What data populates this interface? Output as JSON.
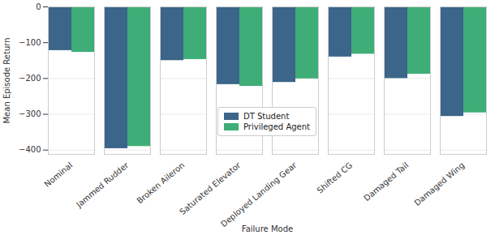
{
  "chart_data": {
    "type": "bar",
    "x_label": "Failure Mode",
    "y_label": "Mean Episode Return",
    "categories": [
      "Nominal",
      "Jammed Rudder",
      "Broken Aileron",
      "Saturated Elevator",
      "Deployed Landing Gear",
      "Shifted CG",
      "Damaged Tail",
      "Damaged Wing"
    ],
    "series": [
      {
        "name": "DT Student",
        "color": "#3b6589",
        "values": [
          -122,
          -396,
          -150,
          -217,
          -211,
          -140,
          -200,
          -306
        ]
      },
      {
        "name": "Privileged Agent",
        "color": "#3fad77",
        "values": [
          -127,
          -390,
          -147,
          -222,
          -201,
          -132,
          -188,
          -296
        ]
      }
    ],
    "ylim": [
      -412,
      0
    ],
    "yticks": [
      -400,
      -300,
      -200,
      -100,
      0
    ],
    "grid": true,
    "legend": "lower center"
  }
}
